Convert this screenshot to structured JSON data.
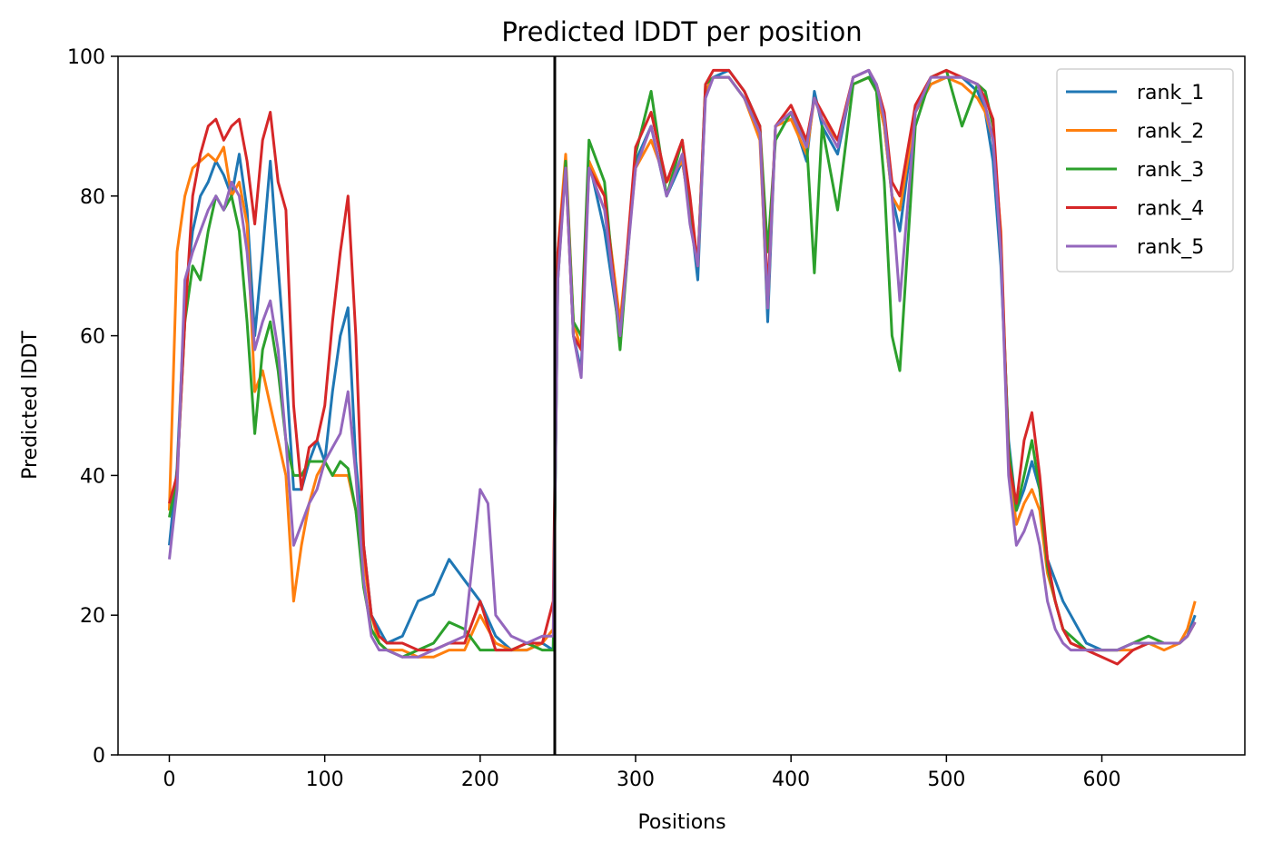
{
  "chart_data": {
    "type": "line",
    "title": "Predicted lDDT per position",
    "xlabel": "Positions",
    "ylabel": "Predicted lDDT",
    "xlim": [
      -33,
      692
    ],
    "ylim": [
      0,
      100
    ],
    "xticks": [
      0,
      100,
      200,
      300,
      400,
      500,
      600
    ],
    "yticks": [
      0,
      20,
      40,
      60,
      80,
      100
    ],
    "grid": false,
    "legend_position": "top-right",
    "vline_x": 248,
    "series": [
      {
        "name": "rank_1",
        "color": "#1f77b4",
        "x": [
          0,
          5,
          10,
          15,
          20,
          25,
          30,
          35,
          40,
          45,
          50,
          55,
          60,
          65,
          70,
          75,
          80,
          85,
          90,
          95,
          100,
          105,
          110,
          115,
          120,
          125,
          130,
          135,
          140,
          150,
          160,
          170,
          180,
          190,
          200,
          210,
          220,
          230,
          240,
          247,
          250,
          255,
          260,
          265,
          270,
          280,
          290,
          300,
          310,
          320,
          330,
          335,
          340,
          345,
          350,
          360,
          370,
          380,
          385,
          390,
          400,
          410,
          415,
          420,
          430,
          440,
          450,
          455,
          460,
          465,
          470,
          480,
          490,
          500,
          510,
          520,
          525,
          530,
          535,
          540,
          545,
          550,
          555,
          560,
          565,
          570,
          575,
          580,
          590,
          600,
          610,
          620,
          630,
          640,
          650,
          655,
          660
        ],
        "values": [
          30,
          41,
          65,
          75,
          80,
          82,
          85,
          83,
          80,
          86,
          78,
          60,
          72,
          85,
          70,
          55,
          38,
          38,
          42,
          45,
          42,
          52,
          60,
          64,
          42,
          30,
          20,
          18,
          16,
          17,
          22,
          23,
          28,
          25,
          22,
          17,
          15,
          15,
          16,
          15,
          70,
          85,
          60,
          55,
          85,
          75,
          60,
          85,
          90,
          80,
          85,
          78,
          68,
          95,
          97,
          98,
          95,
          90,
          62,
          90,
          92,
          85,
          95,
          90,
          86,
          97,
          98,
          95,
          90,
          80,
          75,
          92,
          96,
          97,
          97,
          95,
          92,
          85,
          70,
          45,
          35,
          38,
          42,
          38,
          28,
          25,
          22,
          20,
          16,
          15,
          15,
          16,
          16,
          16,
          16,
          17,
          20
        ]
      },
      {
        "name": "rank_2",
        "color": "#ff7f0e",
        "x": [
          0,
          5,
          10,
          15,
          20,
          25,
          30,
          35,
          40,
          45,
          50,
          55,
          60,
          65,
          70,
          75,
          80,
          85,
          90,
          95,
          100,
          105,
          110,
          115,
          120,
          125,
          130,
          135,
          140,
          150,
          160,
          170,
          180,
          190,
          200,
          210,
          220,
          230,
          240,
          247,
          250,
          255,
          260,
          265,
          270,
          280,
          290,
          300,
          310,
          320,
          330,
          335,
          340,
          345,
          350,
          360,
          370,
          380,
          385,
          390,
          400,
          410,
          415,
          420,
          430,
          440,
          450,
          455,
          460,
          465,
          470,
          480,
          490,
          500,
          510,
          520,
          525,
          530,
          535,
          540,
          545,
          550,
          555,
          560,
          565,
          570,
          575,
          580,
          590,
          600,
          610,
          620,
          630,
          640,
          650,
          655,
          660
        ],
        "values": [
          35,
          72,
          80,
          84,
          85,
          86,
          85,
          87,
          80,
          82,
          76,
          52,
          55,
          50,
          45,
          40,
          22,
          30,
          36,
          40,
          42,
          40,
          40,
          40,
          35,
          28,
          20,
          16,
          15,
          15,
          14,
          14,
          15,
          15,
          20,
          16,
          15,
          15,
          16,
          18,
          72,
          86,
          62,
          58,
          85,
          80,
          62,
          84,
          88,
          82,
          85,
          78,
          70,
          95,
          97,
          97,
          94,
          88,
          64,
          90,
          91,
          86,
          94,
          91,
          88,
          96,
          97,
          95,
          90,
          80,
          78,
          92,
          96,
          97,
          96,
          94,
          92,
          88,
          75,
          42,
          33,
          36,
          38,
          35,
          26,
          22,
          18,
          16,
          15,
          15,
          15,
          15,
          16,
          15,
          16,
          18,
          22
        ]
      },
      {
        "name": "rank_3",
        "color": "#2ca02c",
        "x": [
          0,
          5,
          10,
          15,
          20,
          25,
          30,
          35,
          40,
          45,
          50,
          55,
          60,
          65,
          70,
          75,
          80,
          85,
          90,
          95,
          100,
          105,
          110,
          115,
          120,
          125,
          130,
          135,
          140,
          150,
          160,
          170,
          180,
          190,
          200,
          210,
          220,
          230,
          240,
          247,
          250,
          255,
          260,
          265,
          270,
          280,
          290,
          300,
          310,
          320,
          330,
          335,
          340,
          345,
          350,
          360,
          370,
          380,
          385,
          390,
          400,
          410,
          415,
          420,
          430,
          440,
          450,
          455,
          460,
          465,
          470,
          480,
          490,
          500,
          510,
          520,
          525,
          530,
          535,
          540,
          545,
          550,
          555,
          560,
          565,
          570,
          575,
          580,
          590,
          600,
          610,
          620,
          630,
          640,
          650,
          655,
          660
        ],
        "values": [
          34,
          40,
          62,
          70,
          68,
          75,
          80,
          78,
          80,
          75,
          62,
          46,
          58,
          62,
          55,
          45,
          40,
          40,
          42,
          42,
          42,
          40,
          42,
          41,
          35,
          24,
          18,
          16,
          15,
          14,
          15,
          16,
          19,
          18,
          15,
          15,
          15,
          16,
          15,
          15,
          68,
          85,
          62,
          60,
          88,
          82,
          58,
          86,
          95,
          80,
          88,
          78,
          70,
          96,
          97,
          97,
          94,
          90,
          72,
          88,
          92,
          88,
          69,
          90,
          78,
          96,
          97,
          95,
          82,
          60,
          55,
          90,
          97,
          98,
          90,
          96,
          95,
          90,
          72,
          44,
          35,
          40,
          45,
          38,
          27,
          22,
          18,
          17,
          15,
          15,
          15,
          16,
          17,
          16,
          16,
          17,
          19
        ]
      },
      {
        "name": "rank_4",
        "color": "#d62728",
        "x": [
          0,
          5,
          10,
          15,
          20,
          25,
          30,
          35,
          40,
          45,
          50,
          55,
          60,
          65,
          70,
          75,
          80,
          85,
          90,
          95,
          100,
          105,
          110,
          115,
          120,
          125,
          130,
          135,
          140,
          150,
          160,
          170,
          180,
          190,
          200,
          210,
          220,
          230,
          240,
          247,
          250,
          255,
          260,
          265,
          270,
          280,
          290,
          300,
          310,
          320,
          330,
          335,
          340,
          345,
          350,
          360,
          370,
          380,
          385,
          390,
          400,
          410,
          415,
          420,
          430,
          440,
          450,
          455,
          460,
          465,
          470,
          480,
          490,
          500,
          510,
          520,
          525,
          530,
          535,
          540,
          545,
          550,
          555,
          560,
          565,
          570,
          575,
          580,
          590,
          600,
          610,
          620,
          630,
          640,
          650,
          655,
          660
        ],
        "values": [
          36,
          40,
          62,
          80,
          86,
          90,
          91,
          88,
          90,
          91,
          85,
          76,
          88,
          92,
          82,
          78,
          50,
          38,
          44,
          45,
          50,
          62,
          72,
          80,
          60,
          30,
          20,
          17,
          16,
          16,
          15,
          15,
          16,
          16,
          22,
          15,
          15,
          16,
          16,
          22,
          72,
          84,
          60,
          58,
          84,
          80,
          60,
          87,
          92,
          82,
          88,
          80,
          70,
          96,
          98,
          98,
          95,
          90,
          66,
          90,
          93,
          88,
          94,
          92,
          88,
          97,
          98,
          96,
          92,
          82,
          80,
          93,
          97,
          98,
          97,
          96,
          94,
          91,
          74,
          42,
          36,
          45,
          49,
          40,
          28,
          22,
          18,
          16,
          15,
          14,
          13,
          15,
          16,
          16,
          16,
          17,
          19
        ]
      },
      {
        "name": "rank_5",
        "color": "#9467bd",
        "x": [
          0,
          5,
          10,
          15,
          20,
          25,
          30,
          35,
          40,
          45,
          50,
          55,
          60,
          65,
          70,
          75,
          80,
          85,
          90,
          95,
          100,
          105,
          110,
          115,
          120,
          125,
          130,
          135,
          140,
          150,
          160,
          170,
          180,
          190,
          200,
          205,
          210,
          220,
          230,
          240,
          247,
          250,
          255,
          260,
          265,
          270,
          280,
          290,
          300,
          310,
          320,
          330,
          335,
          340,
          345,
          350,
          360,
          370,
          380,
          385,
          390,
          400,
          410,
          415,
          420,
          430,
          440,
          450,
          455,
          460,
          465,
          470,
          480,
          490,
          500,
          510,
          520,
          525,
          530,
          535,
          540,
          545,
          550,
          555,
          560,
          565,
          570,
          575,
          580,
          590,
          600,
          610,
          620,
          630,
          640,
          650,
          655,
          660
        ],
        "values": [
          28,
          38,
          68,
          72,
          75,
          78,
          80,
          78,
          82,
          80,
          72,
          58,
          62,
          65,
          58,
          45,
          30,
          33,
          36,
          38,
          42,
          44,
          46,
          52,
          40,
          25,
          17,
          15,
          15,
          14,
          14,
          15,
          16,
          17,
          38,
          36,
          20,
          17,
          16,
          17,
          17,
          68,
          84,
          60,
          54,
          84,
          78,
          60,
          84,
          90,
          80,
          86,
          76,
          70,
          94,
          97,
          97,
          94,
          89,
          64,
          90,
          92,
          87,
          94,
          91,
          87,
          97,
          98,
          96,
          91,
          80,
          65,
          92,
          97,
          97,
          97,
          96,
          93,
          88,
          72,
          40,
          30,
          32,
          35,
          30,
          22,
          18,
          16,
          15,
          15,
          15,
          15,
          16,
          16,
          16,
          16,
          17,
          19
        ]
      }
    ]
  }
}
